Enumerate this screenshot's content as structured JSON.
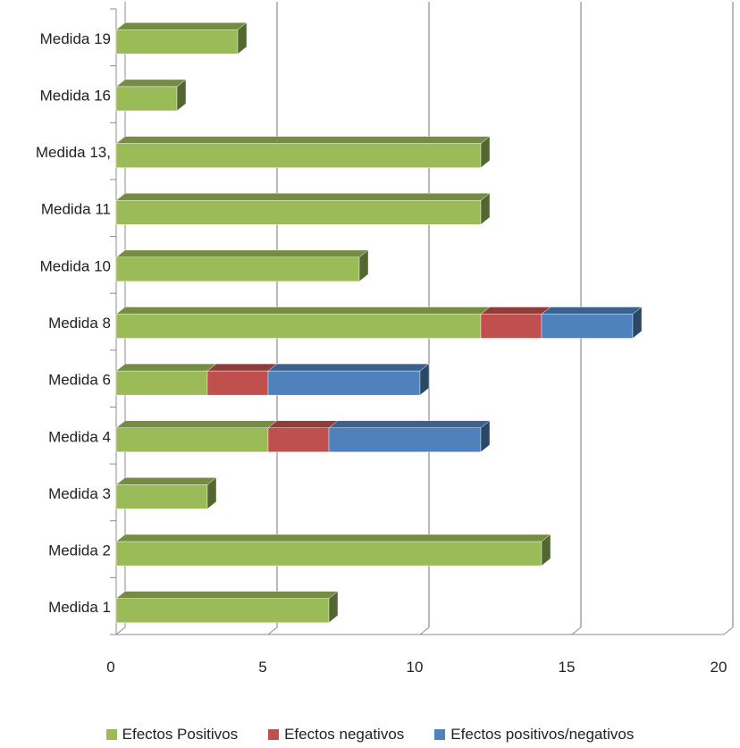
{
  "chart_data": {
    "type": "bar",
    "orientation": "horizontal",
    "stacked": true,
    "three_d": true,
    "title": "",
    "xlabel": "",
    "ylabel": "",
    "categories": [
      "Medida 1",
      "Medida 2",
      "Medida 3",
      "Medida 4",
      "Medida 6",
      "Medida 8",
      "Medida 10",
      "Medida 11",
      "Medida 13,",
      "Medida 16",
      "Medida 19"
    ],
    "series": [
      {
        "name": "Efectos Positivos",
        "color": "#9BBB59",
        "values": [
          7,
          14,
          3,
          5,
          3,
          12,
          8,
          12,
          12,
          2,
          4
        ]
      },
      {
        "name": "Efectos negativos",
        "color": "#C0504D",
        "values": [
          0,
          0,
          0,
          2,
          2,
          2,
          0,
          0,
          0,
          0,
          0
        ]
      },
      {
        "name": "Efectos positivos/negativos",
        "color": "#4F81BD",
        "values": [
          0,
          0,
          0,
          5,
          5,
          3,
          0,
          0,
          0,
          0,
          0
        ]
      }
    ],
    "xlim": [
      0,
      20
    ],
    "x_ticks": [
      "0",
      "5",
      "10",
      "15",
      "20"
    ],
    "grid": true,
    "legend_position": "bottom"
  }
}
